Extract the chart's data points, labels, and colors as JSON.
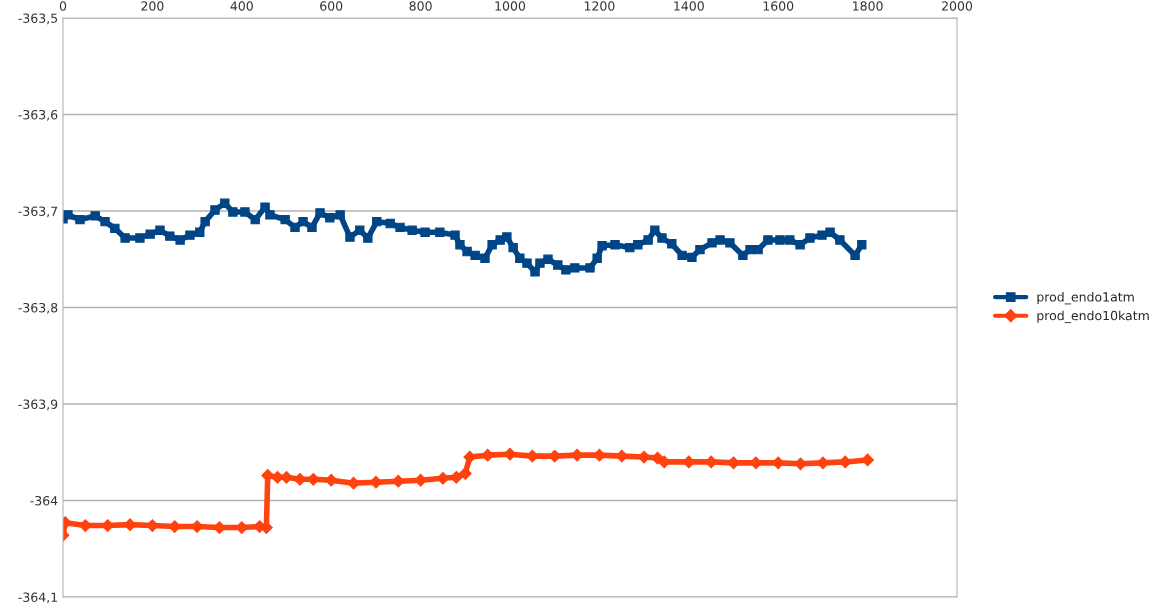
{
  "chart_data": {
    "type": "line",
    "xlim": [
      0,
      2000
    ],
    "xticks": [
      0,
      200,
      400,
      600,
      800,
      1000,
      1200,
      1400,
      1600,
      1800,
      2000
    ],
    "ylim": [
      -364.1,
      -363.5
    ],
    "yticks": [
      {
        "value": -363.5,
        "label": "-363,5"
      },
      {
        "value": -363.6,
        "label": "-363,6"
      },
      {
        "value": -363.7,
        "label": "-363,7"
      },
      {
        "value": -363.8,
        "label": "-363,8"
      },
      {
        "value": -363.9,
        "label": "-363,9"
      },
      {
        "value": -364.0,
        "label": "-364"
      },
      {
        "value": -364.1,
        "label": "-364,1"
      }
    ],
    "grid": "y",
    "legend": "right",
    "series": [
      {
        "name": "prod_endo1atm",
        "color": "#004586",
        "marker": "square",
        "x": [
          0,
          11,
          38,
          72,
          94,
          116,
          139,
          172,
          195,
          217,
          239,
          262,
          284,
          306,
          318,
          340,
          362,
          380,
          407,
          430,
          452,
          463,
          497,
          519,
          537,
          557,
          575,
          597,
          620,
          642,
          664,
          682,
          702,
          732,
          754,
          781,
          810,
          843,
          877,
          888,
          904,
          922,
          944,
          960,
          978,
          993,
          1007,
          1022,
          1038,
          1056,
          1067,
          1085,
          1107,
          1125,
          1145,
          1179,
          1195,
          1206,
          1235,
          1268,
          1286,
          1309,
          1324,
          1340,
          1362,
          1385,
          1407,
          1425,
          1452,
          1470,
          1492,
          1521,
          1537,
          1555,
          1577,
          1604,
          1626,
          1649,
          1671,
          1698,
          1716,
          1738,
          1772,
          1787
        ],
        "values": [
          -363.708,
          -363.704,
          -363.709,
          -363.705,
          -363.711,
          -363.718,
          -363.728,
          -363.728,
          -363.724,
          -363.72,
          -363.726,
          -363.73,
          -363.725,
          -363.722,
          -363.711,
          -363.699,
          -363.692,
          -363.701,
          -363.701,
          -363.709,
          -363.696,
          -363.704,
          -363.709,
          -363.717,
          -363.711,
          -363.717,
          -363.702,
          -363.707,
          -363.704,
          -363.727,
          -363.72,
          -363.728,
          -363.711,
          -363.713,
          -363.717,
          -363.72,
          -363.722,
          -363.722,
          -363.725,
          -363.735,
          -363.742,
          -363.746,
          -363.749,
          -363.735,
          -363.73,
          -363.727,
          -363.738,
          -363.749,
          -363.754,
          -363.763,
          -363.754,
          -363.75,
          -363.756,
          -363.761,
          -363.759,
          -363.759,
          -363.749,
          -363.736,
          -363.735,
          -363.738,
          -363.735,
          -363.73,
          -363.72,
          -363.728,
          -363.734,
          -363.746,
          -363.748,
          -363.74,
          -363.733,
          -363.73,
          -363.733,
          -363.746,
          -363.74,
          -363.74,
          -363.73,
          -363.73,
          -363.73,
          -363.735,
          -363.728,
          -363.725,
          -363.722,
          -363.73,
          -363.746,
          -363.735
        ]
      },
      {
        "name": "prod_endo10katm",
        "color": "#ff420e",
        "marker": "diamond",
        "x": [
          0,
          5,
          50,
          100,
          150,
          200,
          250,
          300,
          350,
          400,
          440,
          455,
          458,
          480,
          500,
          530,
          560,
          600,
          650,
          700,
          750,
          800,
          850,
          880,
          900,
          910,
          950,
          1000,
          1050,
          1100,
          1150,
          1200,
          1250,
          1300,
          1330,
          1345,
          1400,
          1450,
          1500,
          1550,
          1600,
          1650,
          1700,
          1750,
          1800
        ],
        "values": [
          -364.036,
          -364.023,
          -364.026,
          -364.026,
          -364.025,
          -364.026,
          -364.027,
          -364.027,
          -364.028,
          -364.028,
          -364.027,
          -364.028,
          -363.974,
          -363.976,
          -363.976,
          -363.978,
          -363.978,
          -363.979,
          -363.982,
          -363.981,
          -363.98,
          -363.979,
          -363.977,
          -363.976,
          -363.972,
          -363.955,
          -363.953,
          -363.952,
          -363.954,
          -363.954,
          -363.953,
          -363.953,
          -363.954,
          -363.955,
          -363.956,
          -363.96,
          -363.96,
          -363.96,
          -363.961,
          -363.961,
          -363.961,
          -363.962,
          -363.961,
          -363.96,
          -363.958
        ]
      }
    ]
  }
}
